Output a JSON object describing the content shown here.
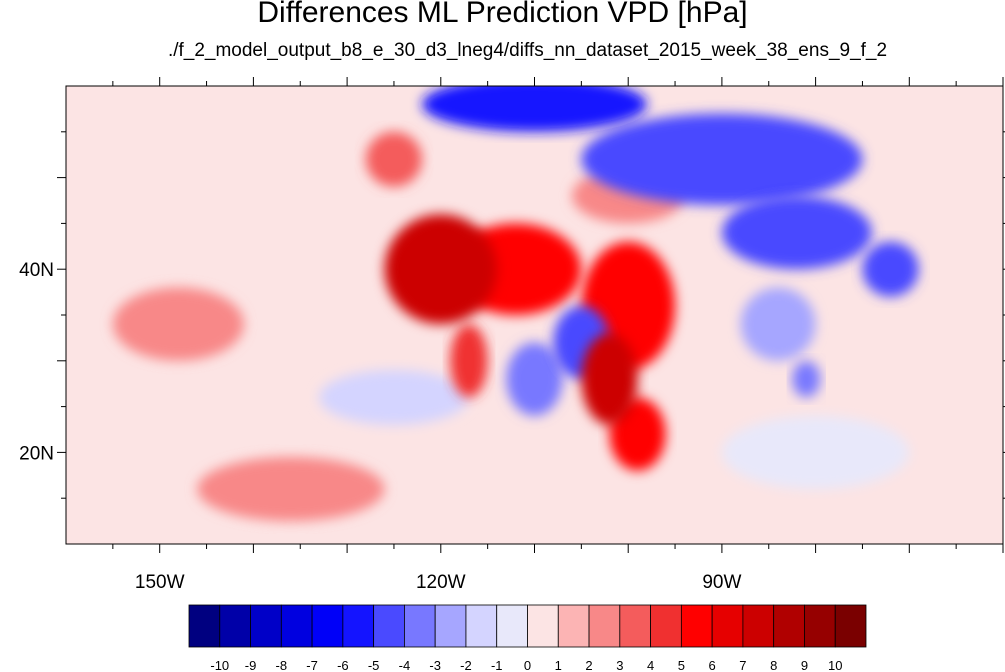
{
  "title": "Differences ML Prediction VPD [hPa]",
  "subtitle": "./f_2_model_output_b8_e_30_d3_lneg4/diffs_nn_dataset_2015_week_38_ens_9_f_2",
  "chart_data": {
    "type": "heatmap",
    "title": "Differences ML Prediction VPD [hPa]",
    "subtitle": "./f_2_model_output_b8_e_30_d3_lneg4/diffs_nn_dataset_2015_week_38_ens_9_f_2",
    "xlim": [
      -160,
      -60
    ],
    "ylim": [
      10,
      60
    ],
    "x_ticks": [
      -150,
      -120,
      -90
    ],
    "x_tick_labels": [
      "150W",
      "120W",
      "90W"
    ],
    "y_ticks": [
      20,
      40
    ],
    "y_tick_labels": [
      "20N",
      "40N"
    ],
    "colorbar": {
      "levels": [
        -10,
        -9,
        -8,
        -7,
        -6,
        -5,
        -4,
        -3,
        -2,
        -1,
        0,
        1,
        2,
        3,
        4,
        5,
        6,
        7,
        8,
        9,
        10
      ],
      "labels": [
        "-10",
        "-9",
        "-8",
        "-7",
        "-6",
        "-5",
        "-4",
        "-3",
        "-2",
        "-1",
        "0",
        "1",
        "2",
        "3",
        "4",
        "5",
        "6",
        "7",
        "8",
        "9",
        "10"
      ],
      "colors": [
        "#000080",
        "#0000a8",
        "#0000c8",
        "#0000e0",
        "#0000f8",
        "#1414ff",
        "#4a4aff",
        "#7878ff",
        "#a6a6ff",
        "#d4d4ff",
        "#e8e8fa",
        "#fce4e4",
        "#fcb4b4",
        "#f88888",
        "#f45c5c",
        "#f03030",
        "#ff0000",
        "#e60000",
        "#cc0000",
        "#b00000",
        "#960000",
        "#7a0000"
      ]
    },
    "field_blobs": [
      {
        "lon": -120,
        "lat": 40,
        "rlon": 6,
        "rlat": 6,
        "value": 7
      },
      {
        "lon": -112,
        "lat": 40,
        "rlon": 7,
        "rlat": 5,
        "value": 5
      },
      {
        "lon": -100,
        "lat": 36,
        "rlon": 5,
        "rlat": 7,
        "value": 5
      },
      {
        "lon": -102,
        "lat": 28,
        "rlon": 3,
        "rlat": 5,
        "value": 7
      },
      {
        "lon": -99,
        "lat": 22,
        "rlon": 3,
        "rlat": 4,
        "value": 5
      },
      {
        "lon": -117,
        "lat": 30,
        "rlon": 2,
        "rlat": 4,
        "value": 4
      },
      {
        "lon": -125,
        "lat": 52,
        "rlon": 3,
        "rlat": 3,
        "value": 3
      },
      {
        "lon": -105,
        "lat": 32,
        "rlon": 3,
        "rlat": 4,
        "value": -5
      },
      {
        "lon": -110,
        "lat": 28,
        "rlon": 3,
        "rlat": 4,
        "value": -4
      },
      {
        "lon": -90,
        "lat": 52,
        "rlon": 15,
        "rlat": 5,
        "value": -5
      },
      {
        "lon": -110,
        "lat": 58,
        "rlon": 12,
        "rlat": 3,
        "value": -6
      },
      {
        "lon": -82,
        "lat": 44,
        "rlon": 8,
        "rlat": 4,
        "value": -5
      },
      {
        "lon": -84,
        "lat": 34,
        "rlon": 4,
        "rlat": 4,
        "value": -3
      },
      {
        "lon": -81,
        "lat": 28,
        "rlon": 1.5,
        "rlat": 2,
        "value": -4
      },
      {
        "lon": -136,
        "lat": 16,
        "rlon": 10,
        "rlat": 3.5,
        "value": 2
      },
      {
        "lon": -148,
        "lat": 34,
        "rlon": 7,
        "rlat": 4,
        "value": 2
      },
      {
        "lon": -125,
        "lat": 26,
        "rlon": 8,
        "rlat": 3,
        "value": -2
      },
      {
        "lon": -100,
        "lat": 48,
        "rlon": 6,
        "rlat": 3,
        "value": 2
      },
      {
        "lon": -72,
        "lat": 40,
        "rlon": 3,
        "rlat": 3,
        "value": -5
      },
      {
        "lon": -80,
        "lat": 20,
        "rlon": 10,
        "rlat": 4,
        "value": -1
      }
    ]
  }
}
